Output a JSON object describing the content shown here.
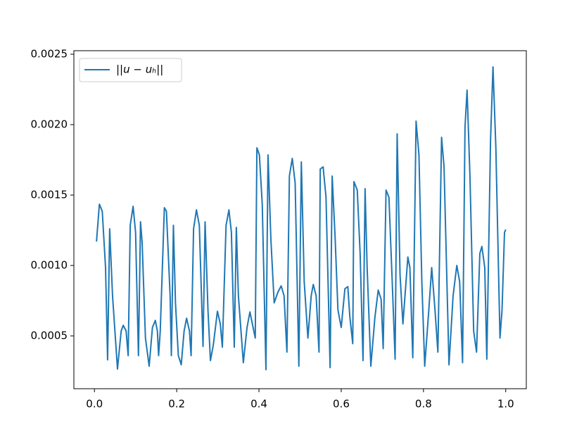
{
  "chart_data": {
    "type": "line",
    "x": [
      0.005,
      0.012,
      0.019,
      0.027,
      0.032,
      0.037,
      0.044,
      0.056,
      0.065,
      0.07,
      0.077,
      0.082,
      0.087,
      0.094,
      0.1,
      0.107,
      0.112,
      0.116,
      0.124,
      0.133,
      0.141,
      0.148,
      0.153,
      0.156,
      0.16,
      0.17,
      0.175,
      0.184,
      0.187,
      0.192,
      0.197,
      0.204,
      0.211,
      0.218,
      0.224,
      0.231,
      0.235,
      0.241,
      0.248,
      0.255,
      0.264,
      0.269,
      0.276,
      0.282,
      0.289,
      0.299,
      0.306,
      0.311,
      0.32,
      0.327,
      0.333,
      0.34,
      0.345,
      0.35,
      0.362,
      0.371,
      0.378,
      0.384,
      0.391,
      0.395,
      0.401,
      0.408,
      0.417,
      0.422,
      0.429,
      0.437,
      0.446,
      0.454,
      0.461,
      0.468,
      0.474,
      0.481,
      0.488,
      0.497,
      0.503,
      0.51,
      0.519,
      0.527,
      0.532,
      0.539,
      0.546,
      0.549,
      0.556,
      0.563,
      0.573,
      0.578,
      0.585,
      0.592,
      0.6,
      0.609,
      0.616,
      0.621,
      0.628,
      0.631,
      0.639,
      0.646,
      0.653,
      0.658,
      0.663,
      0.672,
      0.682,
      0.69,
      0.697,
      0.702,
      0.709,
      0.716,
      0.724,
      0.731,
      0.736,
      0.743,
      0.75,
      0.762,
      0.767,
      0.774,
      0.782,
      0.789,
      0.796,
      0.803,
      0.813,
      0.82,
      0.828,
      0.835,
      0.844,
      0.85,
      0.862,
      0.872,
      0.881,
      0.888,
      0.895,
      0.901,
      0.906,
      0.913,
      0.922,
      0.929,
      0.937,
      0.942,
      0.949,
      0.954,
      0.963,
      0.969,
      0.976,
      0.986,
      0.991,
      0.997,
      1.0
    ],
    "series": [
      {
        "name": "||u − uₕ||",
        "color": "#1f77b4",
        "values": [
          0.00117,
          0.001435,
          0.001385,
          0.000985,
          0.00033,
          0.00126,
          0.000785,
          0.000265,
          0.000535,
          0.000575,
          0.000535,
          0.00036,
          0.001285,
          0.00142,
          0.001235,
          0.00036,
          0.00131,
          0.00116,
          0.000485,
          0.000285,
          0.00056,
          0.00061,
          0.000535,
          0.00036,
          0.000535,
          0.00141,
          0.001385,
          0.000785,
          0.00036,
          0.001285,
          0.000735,
          0.00036,
          0.000295,
          0.000535,
          0.000625,
          0.000535,
          0.00036,
          0.00126,
          0.001395,
          0.001285,
          0.000425,
          0.00131,
          0.000685,
          0.000325,
          0.000435,
          0.000675,
          0.000585,
          0.00042,
          0.001285,
          0.001395,
          0.001235,
          0.00042,
          0.00127,
          0.000785,
          0.00031,
          0.00056,
          0.00067,
          0.000585,
          0.000485,
          0.001835,
          0.001785,
          0.001435,
          0.00026,
          0.001785,
          0.001185,
          0.000735,
          0.00081,
          0.000855,
          0.000785,
          0.000385,
          0.001635,
          0.00176,
          0.001585,
          0.000285,
          0.001735,
          0.000885,
          0.000485,
          0.000785,
          0.000865,
          0.000785,
          0.000385,
          0.001685,
          0.0017,
          0.001485,
          0.000275,
          0.001635,
          0.00121,
          0.000685,
          0.00056,
          0.000835,
          0.00085,
          0.000635,
          0.000445,
          0.001595,
          0.001535,
          0.001085,
          0.000325,
          0.001545,
          0.000985,
          0.000285,
          0.000635,
          0.000825,
          0.00076,
          0.00041,
          0.001535,
          0.001485,
          0.000885,
          0.000335,
          0.001935,
          0.000935,
          0.000585,
          0.00106,
          0.000985,
          0.000345,
          0.002025,
          0.001785,
          0.000885,
          0.000285,
          0.000685,
          0.000985,
          0.000685,
          0.000385,
          0.00191,
          0.0017,
          0.000295,
          0.000785,
          0.001,
          0.000885,
          0.00031,
          0.001985,
          0.002245,
          0.001635,
          0.000535,
          0.000385,
          0.001085,
          0.001135,
          0.000985,
          0.000335,
          0.001885,
          0.00241,
          0.001835,
          0.000485,
          0.000685,
          0.001235,
          0.001255
        ]
      }
    ],
    "xlim": [
      -0.05,
      1.05
    ],
    "ylim": [
      0.000125,
      0.002525
    ],
    "xticks": [
      {
        "value": 0.0,
        "label": "0.0"
      },
      0.2,
      0.4,
      0.6,
      0.8,
      {
        "value": 1.0,
        "label": "1.0"
      }
    ],
    "yticks": [
      0.0005,
      {
        "value": 0.001,
        "label": "0.0010"
      },
      0.0015,
      {
        "value": 0.002,
        "label": "0.0020"
      },
      0.0025
    ],
    "grid": false,
    "legend": "upper left"
  }
}
